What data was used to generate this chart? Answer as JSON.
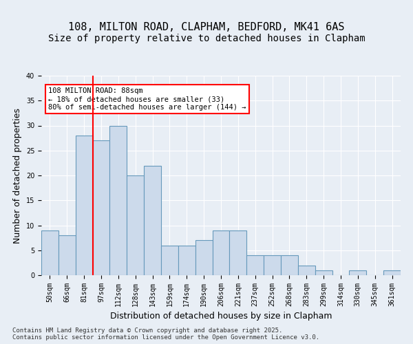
{
  "title1": "108, MILTON ROAD, CLAPHAM, BEDFORD, MK41 6AS",
  "title2": "Size of property relative to detached houses in Clapham",
  "xlabel": "Distribution of detached houses by size in Clapham",
  "ylabel": "Number of detached properties",
  "categories": [
    "50sqm",
    "66sqm",
    "81sqm",
    "97sqm",
    "112sqm",
    "128sqm",
    "143sqm",
    "159sqm",
    "174sqm",
    "190sqm",
    "206sqm",
    "221sqm",
    "237sqm",
    "252sqm",
    "268sqm",
    "283sqm",
    "299sqm",
    "314sqm",
    "330sqm",
    "345sqm",
    "361sqm"
  ],
  "values": [
    9,
    8,
    28,
    27,
    30,
    20,
    22,
    6,
    6,
    7,
    9,
    9,
    4,
    4,
    4,
    2,
    1,
    0,
    1,
    0,
    1
  ],
  "bar_color": "#ccdaeb",
  "bar_edge_color": "#6699bb",
  "red_line_x": 2.5,
  "annotation_text": "108 MILTON ROAD: 88sqm\n← 18% of detached houses are smaller (33)\n80% of semi-detached houses are larger (144) →",
  "annotation_box_color": "white",
  "annotation_box_edge": "red",
  "footer": "Contains HM Land Registry data © Crown copyright and database right 2025.\nContains public sector information licensed under the Open Government Licence v3.0.",
  "background_color": "#e8eef5",
  "plot_background": "#e8eef5",
  "ylim": [
    0,
    40
  ],
  "yticks": [
    0,
    5,
    10,
    15,
    20,
    25,
    30,
    35,
    40
  ],
  "grid_color": "white",
  "title_fontsize": 11,
  "subtitle_fontsize": 10,
  "tick_fontsize": 7,
  "axis_label_fontsize": 9
}
